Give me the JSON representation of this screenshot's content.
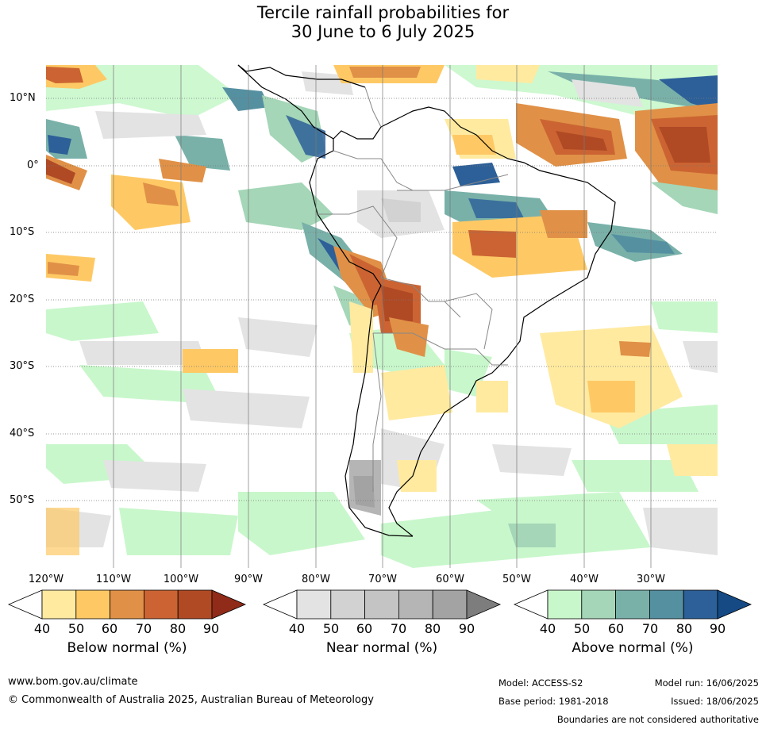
{
  "title": {
    "line1": "Tercile rainfall probabilities for",
    "line2": "30 June to 6 July 2025"
  },
  "map": {
    "lat_labels": [
      "10°N",
      "0°",
      "10°S",
      "20°S",
      "30°S",
      "40°S",
      "50°S"
    ],
    "lon_labels": [
      "120°W",
      "110°W",
      "100°W",
      "90°W",
      "80°W",
      "70°W",
      "60°W",
      "50°W",
      "40°W",
      "30°W"
    ]
  },
  "colorbars": [
    {
      "title": "Below normal (%)",
      "ticks": [
        "40",
        "50",
        "60",
        "70",
        "80",
        "90"
      ],
      "colors": [
        "#ffffff",
        "#ffeaa0",
        "#fec965",
        "#e09147",
        "#cb6432",
        "#b04a25",
        "#8f2b18"
      ]
    },
    {
      "title": "Near normal (%)",
      "ticks": [
        "40",
        "50",
        "60",
        "70",
        "80",
        "90"
      ],
      "colors": [
        "#ffffff",
        "#e3e3e3",
        "#d2d2d2",
        "#c4c4c4",
        "#b5b5b5",
        "#a3a3a3",
        "#7d7d7d"
      ]
    },
    {
      "title": "Above normal (%)",
      "ticks": [
        "40",
        "50",
        "60",
        "70",
        "80",
        "90"
      ],
      "colors": [
        "#ffffff",
        "#c8f7cb",
        "#a4d6b7",
        "#79b1a9",
        "#5590a1",
        "#2d6098",
        "#154a85"
      ]
    }
  ],
  "footer": {
    "website": "www.bom.gov.au/climate",
    "copyright": "© Commonwealth of Australia 2025, Australian Bureau of Meteorology",
    "model": "Model: ACCESS-S2",
    "base_period": "Base period: 1981-2018",
    "model_run": "Model run: 16/06/2025",
    "issued": "Issued: 18/06/2025",
    "disclaimer": "Boundaries are not considered authoritative"
  }
}
